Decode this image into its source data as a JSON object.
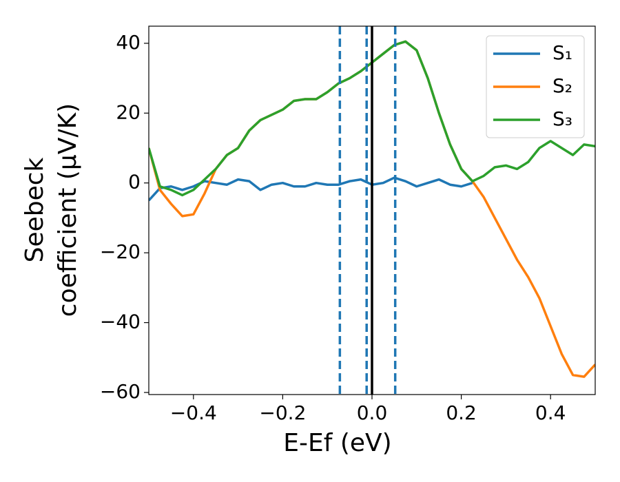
{
  "chart_data": {
    "type": "line",
    "x_label": "E-Ef (eV)",
    "y_label": [
      "Seebeck",
      "coefficient  (μV/K)"
    ],
    "x": [
      -0.5,
      -0.475,
      -0.45,
      -0.425,
      -0.4,
      -0.375,
      -0.35,
      -0.325,
      -0.3,
      -0.275,
      -0.25,
      -0.225,
      -0.2,
      -0.175,
      -0.15,
      -0.125,
      -0.1,
      -0.075,
      -0.05,
      -0.025,
      0,
      0.025,
      0.05,
      0.075,
      0.1,
      0.125,
      0.15,
      0.175,
      0.2,
      0.225,
      0.25,
      0.275,
      0.3,
      0.325,
      0.35,
      0.375,
      0.4,
      0.425,
      0.45,
      0.475,
      0.5
    ],
    "series": [
      {
        "name": "S₁",
        "color": "#1f77b4",
        "values": [
          -5,
          -1.5,
          -1,
          -2,
          -1,
          0.5,
          0,
          -0.5,
          1,
          0.5,
          -2,
          -0.5,
          0,
          -1,
          -1,
          0,
          -0.5,
          -0.5,
          0.5,
          1,
          -0.5,
          0,
          1.5,
          0.5,
          -1,
          0,
          1,
          -0.5,
          -1,
          0,
          null,
          null,
          null,
          null,
          null,
          null,
          null,
          null,
          null,
          null,
          null
        ]
      },
      {
        "name": "S₂",
        "color": "#ff7f0e",
        "values": [
          10,
          -2,
          -6,
          -9.5,
          -9,
          -3,
          4,
          8,
          10,
          15,
          18,
          19.5,
          21,
          23.5,
          24,
          24,
          26,
          28.5,
          30,
          32,
          34.5,
          37,
          39.5,
          40.5,
          38,
          30,
          20,
          11,
          4,
          0.5,
          -4,
          -10,
          -16,
          -22,
          -27,
          -33,
          -41,
          -49,
          -55,
          -55.5,
          -52
        ]
      },
      {
        "name": "S₃",
        "color": "#2ca02c",
        "values": [
          10,
          -1,
          -2,
          -3.5,
          -2,
          1,
          4,
          8,
          10,
          15,
          18,
          19.5,
          21,
          23.5,
          24,
          24,
          26,
          28.5,
          30,
          32,
          34.5,
          37,
          39.5,
          40.5,
          38,
          30,
          20,
          11,
          4,
          0.5,
          2,
          4.5,
          5,
          4,
          6,
          10,
          12,
          10,
          8,
          11,
          10.5
        ]
      }
    ],
    "dashed_vlines": [
      -0.072,
      -0.012,
      0.052
    ],
    "dashed_vline_color": "#1f77b4",
    "solid_vline": 0,
    "solid_vline_color": "#000000",
    "xlim": [
      -0.5,
      0.5
    ],
    "ylim": [
      -60.6,
      44.9
    ],
    "xticks": [
      {
        "value": -0.4,
        "label": "−0.4"
      },
      {
        "value": -0.2,
        "label": "−0.2"
      },
      {
        "value": 0,
        "label": "0.0"
      },
      0.2,
      0.4
    ],
    "yticks": [
      {
        "value": -60,
        "label": "−60"
      },
      {
        "value": -40,
        "label": "−40"
      },
      {
        "value": -20,
        "label": "−20"
      },
      0,
      20,
      40
    ],
    "grid": false,
    "legend": "upper-right"
  }
}
